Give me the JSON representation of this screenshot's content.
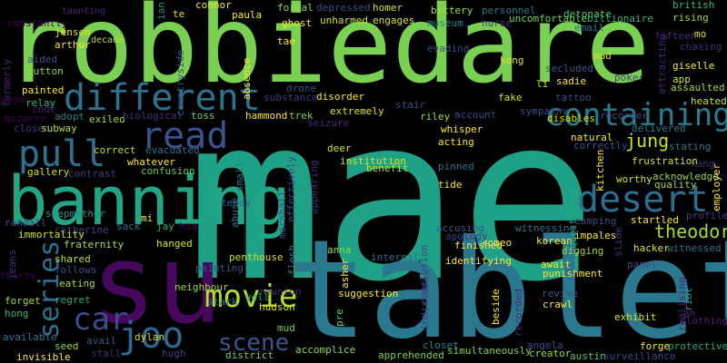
{
  "colors": {
    "background": "#000000",
    "palette": [
      "#440154",
      "#46327e",
      "#365c8d",
      "#277f8e",
      "#1fa187",
      "#4ac16d",
      "#a0da39",
      "#fde725"
    ]
  },
  "words": [
    {
      "text": "mae",
      "color": "#1fa187"
    },
    {
      "text": "robbiedare",
      "color": "#7ad151"
    },
    {
      "text": "tablet",
      "color": "#2a788e"
    },
    {
      "text": "su",
      "color": "#46085c"
    },
    {
      "text": "banning",
      "color": "#21a685"
    },
    {
      "text": "different",
      "color": "#2c728e"
    },
    {
      "text": "containing",
      "color": "#287c8e"
    },
    {
      "text": "read",
      "color": "#3b528b"
    },
    {
      "text": "pull",
      "color": "#2c728e"
    },
    {
      "text": "desert",
      "color": "#2f6c8e"
    },
    {
      "text": "movie",
      "color": "#b5de2b"
    },
    {
      "text": "joo",
      "color": "#31668e"
    },
    {
      "text": "car",
      "color": "#3e4a89"
    },
    {
      "text": "series",
      "color": "#2d708e"
    },
    {
      "text": "scene",
      "color": "#39568c"
    },
    {
      "text": "theodore",
      "color": "#a5db36"
    },
    {
      "text": "jung",
      "color": "#cde11d"
    },
    {
      "text": "constantly",
      "color": "#440154"
    },
    {
      "text": "taunting",
      "color": "#482878"
    },
    {
      "text": "jensen",
      "color": "#e5e419"
    },
    {
      "text": "arthur",
      "color": "#fde725"
    },
    {
      "text": "decade",
      "color": "#b8de29"
    },
    {
      "text": "ian",
      "color": "#21918c"
    },
    {
      "text": "connor",
      "color": "#fde725"
    },
    {
      "text": "paula",
      "color": "#fde725"
    },
    {
      "text": "formal",
      "color": "#90d743"
    },
    {
      "text": "depressed",
      "color": "#3e4a89"
    },
    {
      "text": "unharmed",
      "color": "#d2e21b"
    },
    {
      "text": "homer",
      "color": "#d8e219"
    },
    {
      "text": "engages",
      "color": "#dde318"
    },
    {
      "text": "ghost",
      "color": "#fde725"
    },
    {
      "text": "battery",
      "color": "#a5db36"
    },
    {
      "text": "museum",
      "color": "#26828e"
    },
    {
      "text": "personnel",
      "color": "#2a788e"
    },
    {
      "text": "nurse",
      "color": "#46337e"
    },
    {
      "text": "uncomfortable",
      "color": "#73d056"
    },
    {
      "text": "detonate",
      "color": "#52c569"
    },
    {
      "text": "email",
      "color": "#2c728e"
    },
    {
      "text": "billionaire",
      "color": "#2fb47c"
    },
    {
      "text": "british",
      "color": "#35b779"
    },
    {
      "text": "rising",
      "color": "#a0da39"
    },
    {
      "text": "fifteen",
      "color": "#472d7b"
    },
    {
      "text": "mo",
      "color": "#dde318"
    },
    {
      "text": "chasing",
      "color": "#482878"
    },
    {
      "text": "formerly",
      "color": "#482878"
    },
    {
      "text": "aided",
      "color": "#3b528b"
    },
    {
      "text": "button",
      "color": "#93d741"
    },
    {
      "text": "yeon",
      "color": "#440154"
    },
    {
      "text": "painted",
      "color": "#fde725"
    },
    {
      "text": "relay",
      "color": "#37b878"
    },
    {
      "text": "bizarre",
      "color": "#440154"
    },
    {
      "text": "adopt",
      "color": "#26828e"
    },
    {
      "text": "exiled",
      "color": "#9fda3a"
    },
    {
      "text": "biological",
      "color": "#472a7a"
    },
    {
      "text": "toss",
      "color": "#75d054"
    },
    {
      "text": "hammond",
      "color": "#fde725"
    },
    {
      "text": "trek",
      "color": "#7ad151"
    },
    {
      "text": "code",
      "color": "#482173"
    },
    {
      "text": "closed",
      "color": "#46337e"
    },
    {
      "text": "subway",
      "color": "#b5de2b"
    },
    {
      "text": "correct",
      "color": "#b8de29"
    },
    {
      "text": "evacuated",
      "color": "#2c728e"
    },
    {
      "text": "gallery",
      "color": "#dde318"
    },
    {
      "text": "contrast",
      "color": "#433e85"
    },
    {
      "text": "whatever",
      "color": "#fde725"
    },
    {
      "text": "confusion",
      "color": "#6ccd5a"
    },
    {
      "text": "stepmother",
      "color": "#21918c"
    },
    {
      "text": "randall",
      "color": "#3e4989"
    },
    {
      "text": "catherine",
      "color": "#433e85"
    },
    {
      "text": "mi",
      "color": "#fde725"
    },
    {
      "text": "sack",
      "color": "#2d708e"
    },
    {
      "text": "jay",
      "color": "#2fb47c"
    },
    {
      "text": "hug",
      "color": "#450457"
    },
    {
      "text": "immortality",
      "color": "#d2e21b"
    },
    {
      "text": "fraternity",
      "color": "#b8de29"
    },
    {
      "text": "hanged",
      "color": "#d2e21b"
    },
    {
      "text": "jeans",
      "color": "#46327e"
    },
    {
      "text": "thirty",
      "color": "#440154"
    },
    {
      "text": "shared",
      "color": "#c0df25"
    },
    {
      "text": "follows",
      "color": "#3b528b"
    },
    {
      "text": "eating",
      "color": "#a8db34"
    },
    {
      "text": "forget",
      "color": "#a5db36"
    },
    {
      "text": "hong",
      "color": "#38b977"
    },
    {
      "text": "regret",
      "color": "#25ab82"
    },
    {
      "text": "available",
      "color": "#2a788e"
    },
    {
      "text": "invisible",
      "color": "#fde725"
    },
    {
      "text": "seed",
      "color": "#90d743"
    },
    {
      "text": "avail",
      "color": "#3b528b"
    },
    {
      "text": "stall",
      "color": "#472a7a"
    },
    {
      "text": "dylan",
      "color": "#d0e11c"
    },
    {
      "text": "hugh",
      "color": "#414487"
    },
    {
      "text": "painting",
      "color": "#3b528b"
    },
    {
      "text": "neighbour",
      "color": "#9fda3a"
    },
    {
      "text": "stark",
      "color": "#2d708e"
    },
    {
      "text": "yell",
      "color": "#23a983"
    },
    {
      "text": "penthouse",
      "color": "#cde11d"
    },
    {
      "text": "hudson",
      "color": "#dde318"
    },
    {
      "text": "reunion",
      "color": "#482878"
    },
    {
      "text": "mud",
      "color": "#75d054"
    },
    {
      "text": "pre",
      "color": "#5cc863"
    },
    {
      "text": "accomplice",
      "color": "#90d743"
    },
    {
      "text": "district",
      "color": "#7ad151"
    },
    {
      "text": "apprehended",
      "color": "#7fd34e"
    },
    {
      "text": "closet",
      "color": "#26828e"
    },
    {
      "text": "simultaneously",
      "color": "#7fd34e"
    },
    {
      "text": "angela",
      "color": "#3e4a89"
    },
    {
      "text": "creator",
      "color": "#a0da39"
    },
    {
      "text": "austin",
      "color": "#5ac864"
    },
    {
      "text": "surveillance",
      "color": "#414487"
    },
    {
      "text": "forge",
      "color": "#fde725"
    },
    {
      "text": "protective",
      "color": "#22a884"
    },
    {
      "text": "clothing",
      "color": "#482173"
    },
    {
      "text": "ah",
      "color": "#482878"
    },
    {
      "text": "exhibit",
      "color": "#d2e21b"
    },
    {
      "text": "crawl",
      "color": "#fde725"
    },
    {
      "text": "revive",
      "color": "#3b528b"
    },
    {
      "text": "recorded",
      "color": "#482878"
    },
    {
      "text": "beside",
      "color": "#fde725"
    },
    {
      "text": "suggestion",
      "color": "#fde725"
    },
    {
      "text": "asher",
      "color": "#fde725"
    },
    {
      "text": "conclusion",
      "color": "#414487"
    },
    {
      "text": "individual",
      "color": "#414487"
    },
    {
      "text": "internal",
      "color": "#2e6e8e"
    },
    {
      "text": "anna",
      "color": "#90d743"
    },
    {
      "text": "flesh",
      "color": "#2a788e"
    },
    {
      "text": "identifying",
      "color": "#fde725"
    },
    {
      "text": "finished",
      "color": "#fde725"
    },
    {
      "text": "romeo",
      "color": "#fde725"
    },
    {
      "text": "apology",
      "color": "#433e85"
    },
    {
      "text": "accusing",
      "color": "#3b528b"
    },
    {
      "text": "marshall",
      "color": "#3e4a89"
    },
    {
      "text": "effectively",
      "color": "#3e4a89"
    },
    {
      "text": "abuse",
      "color": "#2c728e"
    },
    {
      "text": "teddy",
      "color": "#31688e"
    },
    {
      "text": "small",
      "color": "#2c728e"
    },
    {
      "text": "appearing",
      "color": "#472d7b"
    },
    {
      "text": "institution",
      "color": "#d8e219"
    },
    {
      "text": "benefit",
      "color": "#c0df25"
    },
    {
      "text": "deer",
      "color": "#d2e21b"
    },
    {
      "text": "pinned",
      "color": "#2c728e"
    },
    {
      "text": "tide",
      "color": "#fde725"
    },
    {
      "text": "witnessing",
      "color": "#2c728e"
    },
    {
      "text": "korean",
      "color": "#fde725"
    },
    {
      "text": "questioned",
      "color": "#22a884"
    },
    {
      "text": "camping",
      "color": "#3e4989"
    },
    {
      "text": "impales",
      "color": "#fde725"
    },
    {
      "text": "digging",
      "color": "#a0da39"
    },
    {
      "text": "await",
      "color": "#fde725"
    },
    {
      "text": "punishment",
      "color": "#fde725"
    },
    {
      "text": "hacker",
      "color": "#dde318"
    },
    {
      "text": "panel",
      "color": "#3e4a89"
    },
    {
      "text": "witnessed",
      "color": "#2c728e"
    },
    {
      "text": "slide",
      "color": "#472d7b"
    },
    {
      "text": "realising",
      "color": "#482878"
    },
    {
      "text": "riot",
      "color": "#1f9e89"
    },
    {
      "text": "startled",
      "color": "#fde725"
    },
    {
      "text": "worthy",
      "color": "#d2e21b"
    },
    {
      "text": "quality",
      "color": "#9fda3a"
    },
    {
      "text": "acknowledge",
      "color": "#9fda3a"
    },
    {
      "text": "employer",
      "color": "#fde725"
    },
    {
      "text": "kang",
      "color": "#472d7b"
    },
    {
      "text": "profile",
      "color": "#443983"
    },
    {
      "text": "kitchen",
      "color": "#fde725"
    },
    {
      "text": "frustration",
      "color": "#cde11d"
    },
    {
      "text": "stating",
      "color": "#2a788e"
    },
    {
      "text": "correctly",
      "color": "#3b528b"
    },
    {
      "text": "natural",
      "color": "#fde725"
    },
    {
      "text": "delivered",
      "color": "#2a788e"
    },
    {
      "text": "heated",
      "color": "#c8e020"
    },
    {
      "text": "disables",
      "color": "#d2e21b"
    },
    {
      "text": "recorder",
      "color": "#3b528b"
    },
    {
      "text": "tattoo",
      "color": "#3e4a89"
    },
    {
      "text": "sympathy",
      "color": "#3e4a89"
    },
    {
      "text": "account",
      "color": "#3e4a89"
    },
    {
      "text": "fake",
      "color": "#d2e21b"
    },
    {
      "text": "li",
      "color": "#d8e219"
    },
    {
      "text": "sadie",
      "color": "#fde725"
    },
    {
      "text": "secluded",
      "color": "#3b528b"
    },
    {
      "text": "mad",
      "color": "#d2e21b"
    },
    {
      "text": "poker",
      "color": "#433e85"
    },
    {
      "text": "kong",
      "color": "#dde318"
    },
    {
      "text": "evading",
      "color": "#3e4a89"
    },
    {
      "text": "app",
      "color": "#d2e21b"
    },
    {
      "text": "assaulted",
      "color": "#a0da39"
    },
    {
      "text": "giselle",
      "color": "#fde725"
    },
    {
      "text": "attracting",
      "color": "#482878"
    },
    {
      "text": "whisper",
      "color": "#fde725"
    },
    {
      "text": "acting",
      "color": "#fde725"
    },
    {
      "text": "riley",
      "color": "#a0da39"
    },
    {
      "text": "stair",
      "color": "#3e4a89"
    },
    {
      "text": "extremely",
      "color": "#dde318"
    },
    {
      "text": "seizure",
      "color": "#482878"
    },
    {
      "text": "disorder",
      "color": "#fde725"
    },
    {
      "text": "drone",
      "color": "#3b528b"
    },
    {
      "text": "substance",
      "color": "#46327e"
    },
    {
      "text": "absence",
      "color": "#fde725"
    },
    {
      "text": "tae",
      "color": "#fde725"
    },
    {
      "text": "countryside",
      "color": "#3b528b"
    },
    {
      "text": "te",
      "color": "#dde318"
    }
  ]
}
